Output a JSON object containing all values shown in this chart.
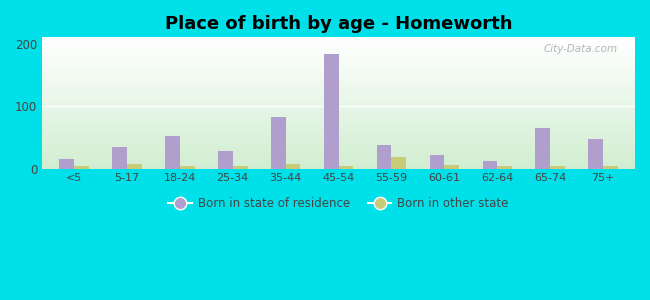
{
  "title": "Place of birth by age - Homeworth",
  "categories": [
    "<5",
    "5-17",
    "18-24",
    "25-34",
    "35-44",
    "45-54",
    "55-59",
    "60-61",
    "62-64",
    "65-74",
    "75+"
  ],
  "born_in_state": [
    15,
    35,
    52,
    28,
    82,
    183,
    37,
    22,
    12,
    65,
    48
  ],
  "born_other_state": [
    4,
    8,
    4,
    4,
    7,
    4,
    19,
    5,
    4,
    4,
    4
  ],
  "bar_color_state": "#b09fcc",
  "bar_color_other": "#c8cc7a",
  "ylim": [
    0,
    210
  ],
  "yticks": [
    0,
    100,
    200
  ],
  "outer_background": "#00e0e8",
  "plot_bg_top": "#ffffff",
  "plot_bg_bottom": "#d4edda",
  "title_fontsize": 13,
  "legend_labels": [
    "Born in state of residence",
    "Born in other state"
  ],
  "watermark": "City-Data.com"
}
